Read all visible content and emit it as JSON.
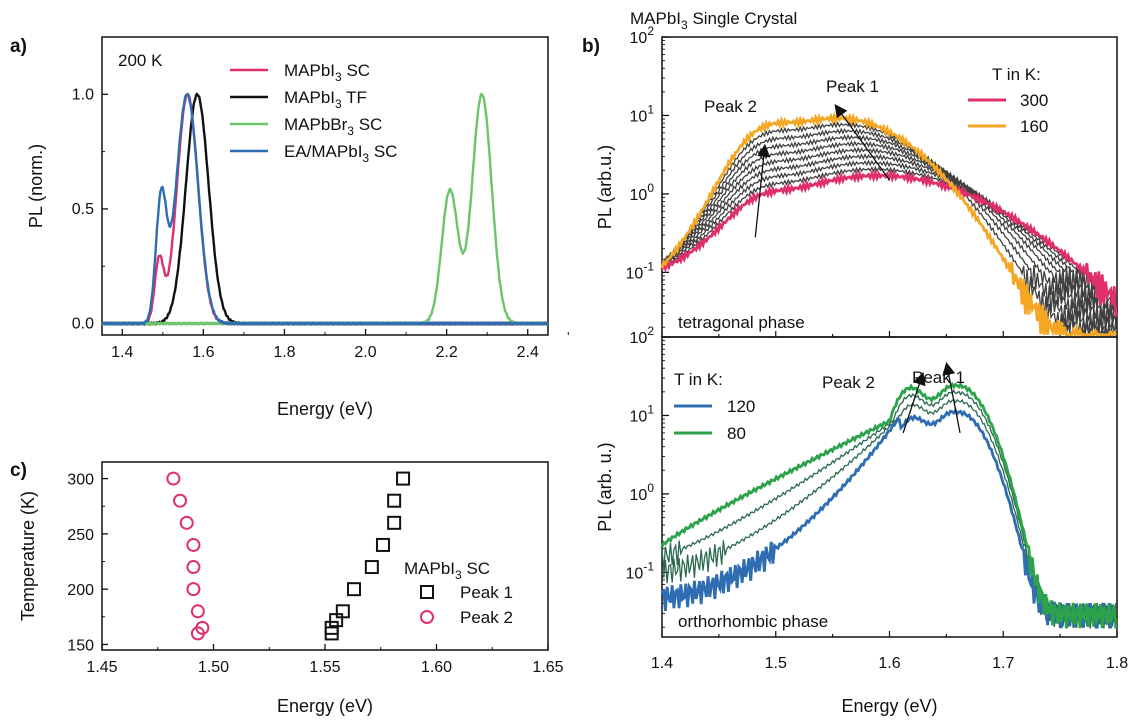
{
  "chart_data": [
    {
      "panel": "a)",
      "type": "line",
      "xlabel": "Energy (eV)",
      "ylabel": "PL (norm.)",
      "xlim": [
        1.35,
        2.45
      ],
      "ylim": [
        -0.05,
        1.25
      ],
      "xticks": [
        1.4,
        1.6,
        1.8,
        2.0,
        2.2,
        2.4
      ],
      "xtick_labels": [
        "1.4",
        "1.6",
        "1.8",
        "2.0",
        "2.2",
        "2.4"
      ],
      "yticks": [
        0,
        0.5,
        1.0
      ],
      "ytick_labels": [
        "0.0",
        "0.5",
        "1.0"
      ],
      "annotation": "200 K",
      "legend_position": "top-center",
      "series": [
        {
          "name": "MAPbI",
          "sub": "3",
          "tail": " SC",
          "color": "#e0306a",
          "peaks": [
            {
              "c": 1.561,
              "a": 1.0,
              "w": 0.026
            },
            {
              "c": 1.491,
              "a": 0.27,
              "w": 0.011
            }
          ]
        },
        {
          "name": "MAPbI",
          "sub": "3",
          "tail": " TF",
          "color": "#111111",
          "peaks": [
            {
              "c": 1.585,
              "a": 1.0,
              "w": 0.028
            }
          ]
        },
        {
          "name": "MAPbBr",
          "sub": "3",
          "tail": " SC",
          "color": "#6cc46c",
          "peaks": [
            {
              "c": 2.287,
              "a": 1.0,
              "w": 0.024
            },
            {
              "c": 2.208,
              "a": 0.58,
              "w": 0.02
            }
          ]
        },
        {
          "name": "EA/MAPbI",
          "sub": "3",
          "tail": " SC",
          "color": "#2f6db3",
          "peaks": [
            {
              "c": 1.56,
              "a": 1.0,
              "w": 0.027
            },
            {
              "c": 1.496,
              "a": 0.53,
              "w": 0.013
            }
          ]
        }
      ]
    },
    {
      "panel": "b)",
      "type": "line",
      "title": "MAPbI",
      "title_sub": "3",
      "title_tail": " Single Crystal",
      "ylabel": "PL (arb.u.)",
      "yscale": "log",
      "xlim": [
        1.4,
        1.8
      ],
      "ylim": [
        0.015,
        100
      ],
      "yticks": [
        0.1,
        1,
        10,
        100
      ],
      "ytick_bases": [
        "10",
        "10",
        "10",
        "10"
      ],
      "ytick_exps": [
        "-1",
        "0",
        "1",
        "2"
      ],
      "legend_title": "T in K:",
      "legend_position": "top-right",
      "phase_label": "tetragonal phase",
      "peak_labels": [
        "Peak 2",
        "Peak 1"
      ],
      "temperatures": [
        "300",
        "160"
      ],
      "series": [
        {
          "name": "300",
          "color": "#e0306a",
          "p1": {
            "c": 1.59,
            "a": 1.7,
            "w": 0.075
          },
          "p2": {
            "c": 1.488,
            "a": 0.3,
            "w": 0.02
          }
        },
        {
          "name": "160",
          "color": "#f5a623",
          "p1": {
            "c": 1.555,
            "a": 9.2,
            "w": 0.05
          },
          "p2": {
            "c": 1.49,
            "a": 3.3,
            "w": 0.02
          }
        }
      ]
    },
    {
      "panel": "b) lower",
      "type": "line",
      "xlabel": "Energy (eV)",
      "ylabel": "PL (arb. u.)",
      "yscale": "log",
      "xlim": [
        1.4,
        1.8
      ],
      "ylim": [
        0.015,
        100
      ],
      "xticks": [
        1.4,
        1.5,
        1.6,
        1.7,
        1.8
      ],
      "xtick_labels": [
        "1.4",
        "1.5",
        "1.6",
        "1.7",
        "1.8"
      ],
      "yticks": [
        0.1,
        1,
        10,
        100
      ],
      "ytick_bases": [
        "10",
        "10",
        "10",
        "10"
      ],
      "ytick_exps": [
        "-1",
        "0",
        "1",
        "2"
      ],
      "legend_title": "T in K:",
      "legend_position": "top-left",
      "phase_label": "orthorhombic phase",
      "peak_labels": [
        "Peak 2",
        "Peak 1"
      ],
      "temperatures": [
        "120",
        "80"
      ],
      "series": [
        {
          "name": "120",
          "color": "#2f6db3",
          "p1": {
            "c": 1.657,
            "a": 11,
            "w": 0.012
          },
          "p2": {
            "c": 1.62,
            "a": 9,
            "w": 0.012
          }
        },
        {
          "name": "80",
          "color": "#2ca24a",
          "p1": {
            "c": 1.657,
            "a": 24,
            "w": 0.012
          },
          "p2": {
            "c": 1.618,
            "a": 22,
            "w": 0.012
          }
        }
      ]
    },
    {
      "panel": "c)",
      "type": "scatter",
      "xlabel": "Energy (eV)",
      "ylabel": "Temperature (K)",
      "xlim": [
        1.45,
        1.65
      ],
      "ylim": [
        145,
        315
      ],
      "xticks": [
        1.45,
        1.5,
        1.55,
        1.6,
        1.65
      ],
      "xtick_labels": [
        "1.45",
        "1.50",
        "1.55",
        "1.60",
        "1.65"
      ],
      "yticks": [
        150,
        200,
        250,
        300
      ],
      "yminor": [
        175,
        225,
        275
      ],
      "ytick_labels": [
        "150",
        "200",
        "250",
        "300"
      ],
      "legend_title": "MAPbI",
      "legend_title_sub": "3",
      "legend_title_tail": " SC",
      "legend_position": "bottom-right",
      "series": [
        {
          "name": "Peak 1",
          "marker": "square",
          "color": "#111111",
          "x": [
            1.585,
            1.581,
            1.581,
            1.576,
            1.571,
            1.563,
            1.558,
            1.555,
            1.553,
            1.553
          ],
          "y": [
            300,
            280,
            260,
            240,
            220,
            200,
            180,
            172,
            165,
            160
          ]
        },
        {
          "name": "Peak 2",
          "marker": "circle",
          "color": "#e0306a",
          "x": [
            1.482,
            1.485,
            1.488,
            1.491,
            1.491,
            1.491,
            1.493,
            1.495,
            1.493
          ],
          "y": [
            300,
            280,
            260,
            240,
            220,
            200,
            180,
            165,
            160
          ]
        }
      ]
    }
  ]
}
